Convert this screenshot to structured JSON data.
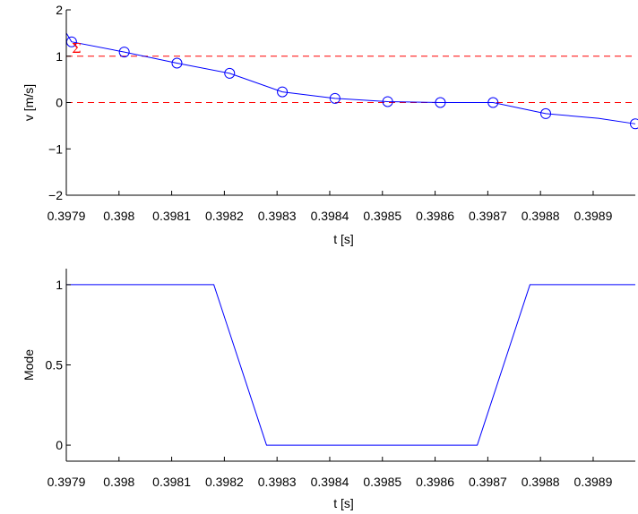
{
  "colors": {
    "series": "#0000ff",
    "threshold": "#ff0000",
    "axis": "#000000",
    "background": "#ffffff"
  },
  "chart_data": [
    {
      "type": "line",
      "xlabel": "t [s]",
      "ylabel": "v [m/s]",
      "xlim": [
        0.3979,
        0.39898
      ],
      "ylim": [
        -2,
        2
      ],
      "x_ticks": [
        0.3979,
        0.398,
        0.3981,
        0.3982,
        0.3983,
        0.3984,
        0.3985,
        0.3986,
        0.3987,
        0.3988,
        0.3989
      ],
      "x_tick_labels": [
        "0.3979",
        "0.398",
        "0.3981",
        "0.3982",
        "0.3983",
        "0.3984",
        "0.3985",
        "0.3986",
        "0.3987",
        "0.3988",
        "0.3989"
      ],
      "y_ticks": [
        -2,
        -1,
        0,
        1,
        2
      ],
      "y_tick_labels": [
        "−2",
        "−1",
        "0",
        "1",
        "2"
      ],
      "grid": false,
      "series": [
        {
          "marker": "circle",
          "x": [
            0.3979,
            0.39791,
            0.39801,
            0.39811,
            0.39821,
            0.39831,
            0.39841,
            0.39851,
            0.39861,
            0.39871,
            0.39881,
            0.39891,
            0.39898
          ],
          "y": [
            1.5,
            1.31,
            1.09,
            0.85,
            0.63,
            0.23,
            0.09,
            0.02,
            0.0,
            0.0,
            -0.24,
            -0.34,
            -0.46
          ],
          "marker_mask": [
            false,
            true,
            true,
            true,
            true,
            true,
            true,
            true,
            true,
            true,
            true,
            false,
            true
          ]
        }
      ],
      "reference_lines": [
        {
          "y": 1,
          "style": "dashed",
          "label": "Σ"
        },
        {
          "y": 0,
          "style": "dashed"
        }
      ],
      "annotations": [
        {
          "text": "Σ",
          "x": 0.3979,
          "y": 1
        }
      ]
    },
    {
      "type": "line",
      "xlabel": "t [s]",
      "ylabel": "Mode",
      "xlim": [
        0.3979,
        0.39898
      ],
      "ylim": [
        -0.1,
        1.1
      ],
      "x_ticks": [
        0.3979,
        0.398,
        0.3981,
        0.3982,
        0.3983,
        0.3984,
        0.3985,
        0.3986,
        0.3987,
        0.3988,
        0.3989
      ],
      "x_tick_labels": [
        "0.3979",
        "0.398",
        "0.3981",
        "0.3982",
        "0.3983",
        "0.3984",
        "0.3985",
        "0.3986",
        "0.3987",
        "0.3988",
        "0.3989"
      ],
      "y_ticks": [
        0,
        0.5,
        1
      ],
      "y_tick_labels": [
        "0",
        "0.5",
        "1"
      ],
      "grid": false,
      "series": [
        {
          "marker": "none",
          "x": [
            0.3979,
            0.39818,
            0.39828,
            0.39868,
            0.39878,
            0.39898
          ],
          "y": [
            1,
            1,
            0,
            0,
            1,
            1
          ]
        }
      ]
    }
  ]
}
